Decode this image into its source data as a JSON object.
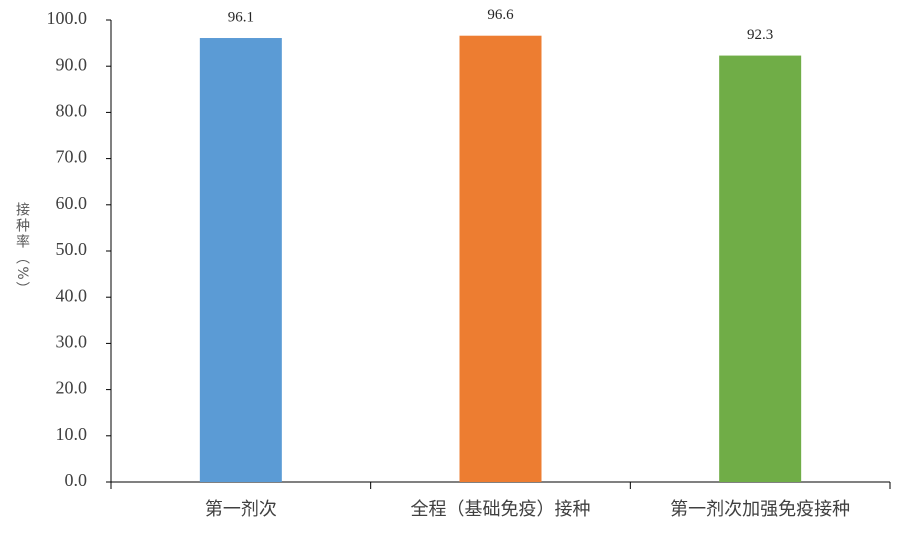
{
  "chart_data": {
    "type": "bar",
    "y_label": "接种率（%）",
    "categories": [
      "第一剂次",
      "全程（基础免疫）接种",
      "第一剂次加强免疫接种"
    ],
    "values": [
      96.1,
      96.6,
      92.3
    ],
    "colors": [
      "#5b9bd5",
      "#ed7d31",
      "#70ad47"
    ],
    "ylim": [
      0,
      100
    ],
    "yticks": [
      {
        "value": 0,
        "label": "0.0"
      },
      {
        "value": 10,
        "label": "10.0"
      },
      {
        "value": 20,
        "label": "20.0"
      },
      {
        "value": 30,
        "label": "30.0"
      },
      {
        "value": 40,
        "label": "40.0"
      },
      {
        "value": 50,
        "label": "50.0"
      },
      {
        "value": 60,
        "label": "60.0"
      },
      {
        "value": 70,
        "label": "70.0"
      },
      {
        "value": 80,
        "label": "80.0"
      },
      {
        "value": 90,
        "label": "90.0"
      },
      {
        "value": 100,
        "label": "100.0"
      }
    ],
    "grid": false
  }
}
